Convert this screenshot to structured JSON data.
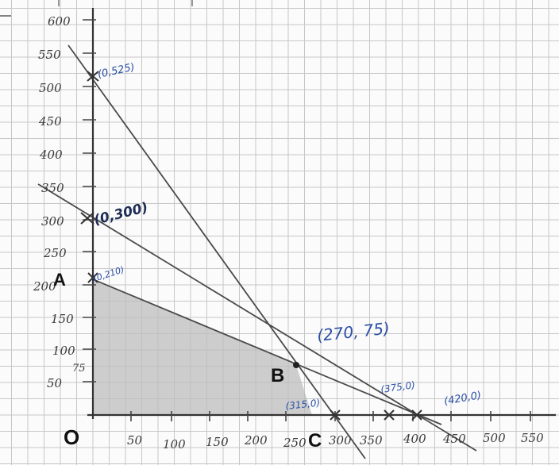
{
  "graph": {
    "y_ticks": [
      "600",
      "550",
      "500",
      "450",
      "400",
      "350",
      "300",
      "250",
      "200",
      "150",
      "100",
      "50"
    ],
    "x_ticks": [
      "50",
      "100",
      "150",
      "200",
      "250",
      "300",
      "350",
      "400",
      "450",
      "500",
      "550"
    ],
    "y_extra": "75",
    "vertices": {
      "origin": "O",
      "a": "A",
      "b": "B",
      "c": "C"
    },
    "annotations": {
      "p_0_525": "(0,525)",
      "p_0_300": "(0,300)",
      "p_0_210": "(0,210)",
      "p_270_75": "(270, 75)",
      "p_315_0": "(315,0)",
      "p_375_0": "(375,0)",
      "p_420_0": "(420,0)"
    },
    "colors": {
      "ink": "#4a4a4a",
      "region": "#bdbdbd",
      "grid": "#c7c7c7",
      "annotation": "#2a4fa6"
    }
  }
}
